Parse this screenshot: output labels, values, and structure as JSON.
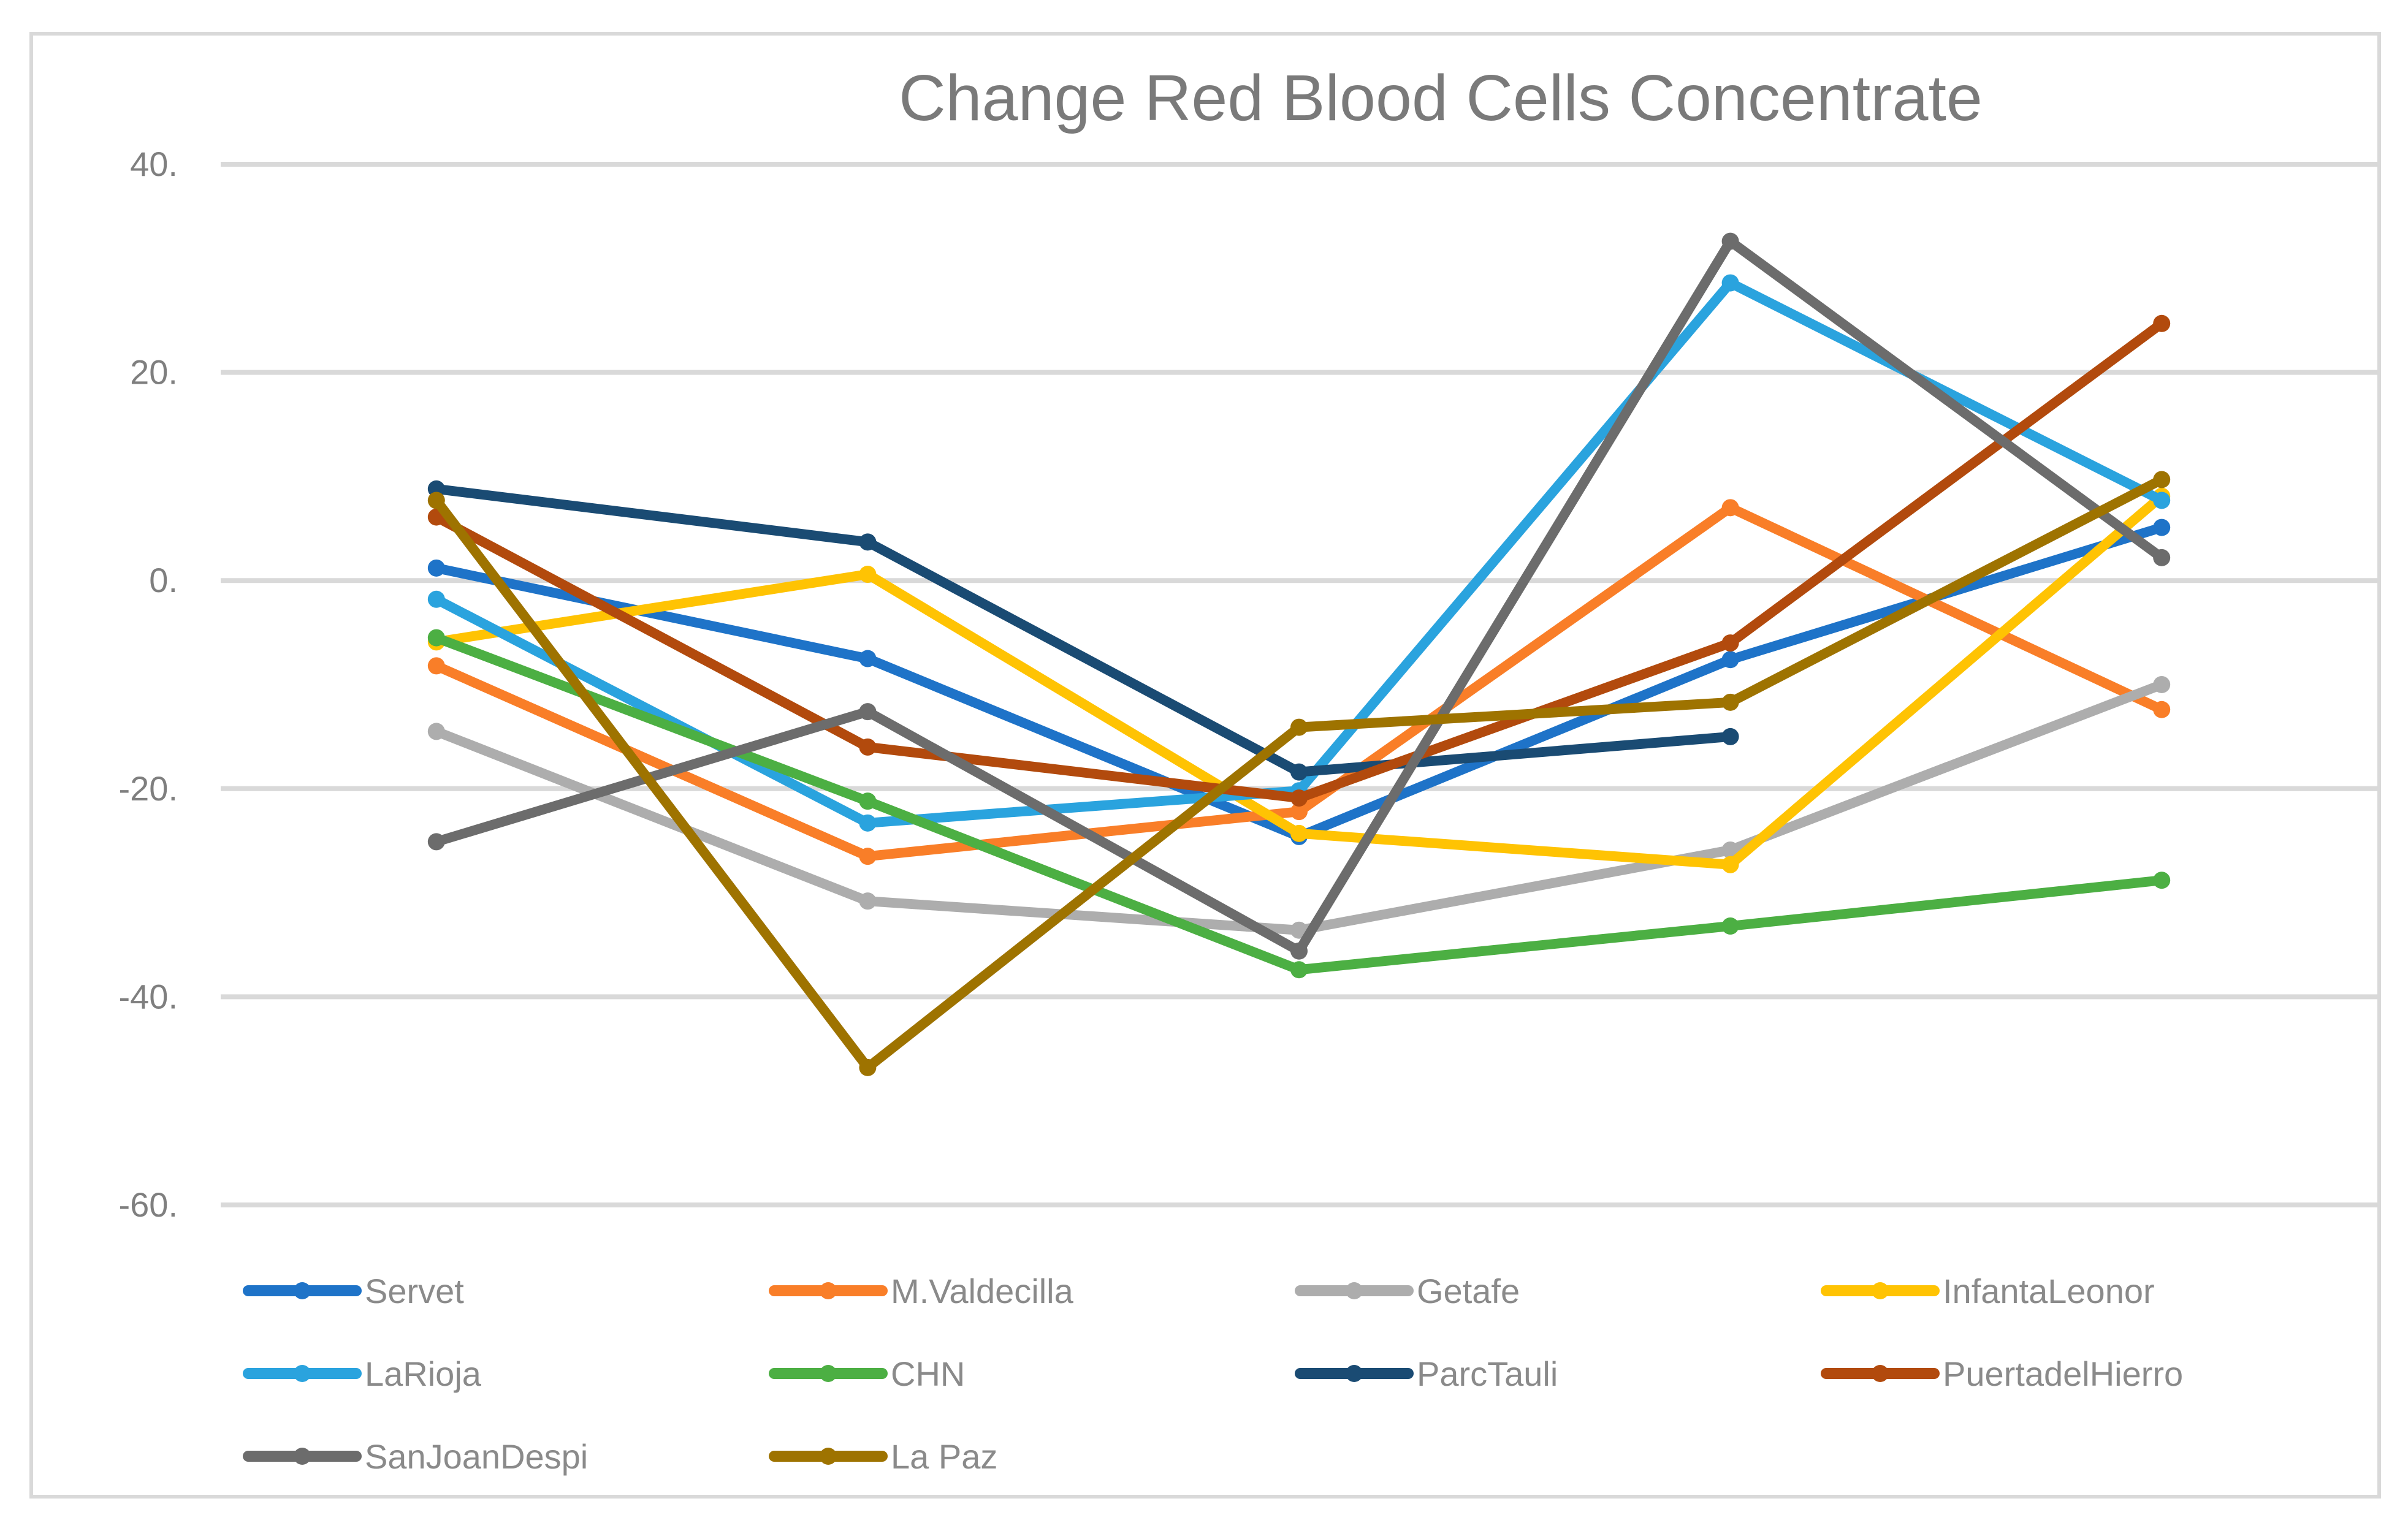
{
  "chart_data": {
    "type": "line",
    "title": "Change Red Blood Cells Concentrate",
    "xlabel": "",
    "ylabel": "",
    "x_count": 5,
    "x_tick_labels_visible": false,
    "ylim": [
      -60,
      40
    ],
    "grid": true,
    "legend_position": "bottom",
    "y_ticks": [
      {
        "label": "40.",
        "value": 40
      },
      {
        "label": "20.",
        "value": 20
      },
      {
        "label": "0.",
        "value": 0
      },
      {
        "label": "-20.",
        "value": -20
      },
      {
        "label": "-40.",
        "value": -40
      },
      {
        "label": "-60.",
        "value": -60
      }
    ],
    "series": [
      {
        "name": "Servet",
        "color": "#1E73C8",
        "values": [
          1.2,
          -7.5,
          -24.6,
          -7.6,
          5.1
        ]
      },
      {
        "name": "M.Valdecilla",
        "color": "#F97E28",
        "values": [
          -8.2,
          -26.5,
          -22.2,
          7.0,
          -12.4
        ]
      },
      {
        "name": "Getafe",
        "color": "#ADADAD",
        "values": [
          -14.5,
          -30.8,
          -33.6,
          -25.9,
          -10.0
        ]
      },
      {
        "name": "InfantaLeonor",
        "color": "#FFC303",
        "values": [
          -5.9,
          0.6,
          -24.3,
          -27.3,
          8.1
        ]
      },
      {
        "name": "LaRioja",
        "color": "#2AA3DE",
        "values": [
          -1.8,
          -23.3,
          -20.2,
          28.6,
          7.7
        ]
      },
      {
        "name": "CHN",
        "color": "#4CAF43",
        "values": [
          -5.5,
          -21.2,
          -37.4,
          -33.2,
          -28.8
        ]
      },
      {
        "name": "ParcTauli",
        "color": "#1A4B73",
        "values": [
          8.8,
          3.7,
          -18.4,
          -15.0,
          null
        ]
      },
      {
        "name": "PuertadelHierro",
        "color": "#B24A0D",
        "values": [
          6.1,
          -16.0,
          -20.9,
          -6.0,
          24.7
        ]
      },
      {
        "name": "SanJoanDespi",
        "color": "#6C6C6C",
        "values": [
          -25.1,
          -12.6,
          -35.6,
          32.6,
          2.2
        ]
      },
      {
        "name": "La Paz",
        "color": "#9E7300",
        "values": [
          7.7,
          -46.8,
          -14.1,
          -11.7,
          9.7
        ]
      }
    ],
    "colors": {
      "gridline": "#D9D9D9",
      "chart_border": "#D9D9D9",
      "title_text": "#7A7A7A",
      "axis_text": "#7F7F7F",
      "legend_text": "#8A8A8A"
    }
  }
}
